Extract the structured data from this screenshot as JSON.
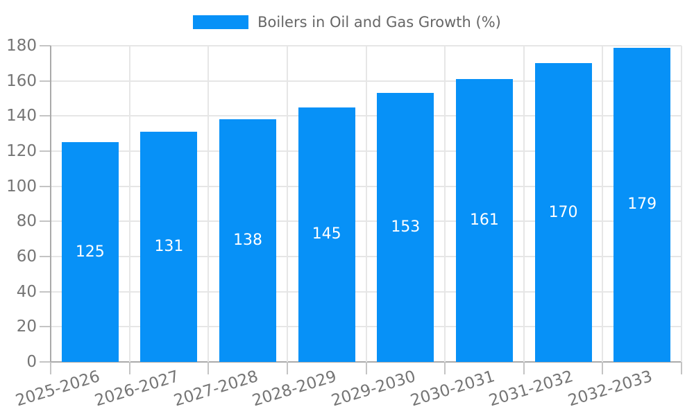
{
  "legend": {
    "label": "Boilers in Oil and Gas Growth (%)"
  },
  "chart_data": {
    "type": "bar",
    "title": "Boilers in Oil and Gas Growth (%)",
    "categories": [
      "2025-2026",
      "2026-2027",
      "2027-2028",
      "2028-2029",
      "2029-2030",
      "2030-2031",
      "2031-2032",
      "2032-2033"
    ],
    "series": [
      {
        "name": "Boilers in Oil and Gas Growth (%)",
        "values": [
          125,
          131,
          138,
          145,
          153,
          161,
          170,
          179
        ]
      }
    ],
    "value_labels": [
      "125",
      "131",
      "138",
      "145",
      "153",
      "161",
      "170",
      "179"
    ],
    "xlabel": "",
    "ylabel": "",
    "ylim": [
      0,
      180
    ],
    "yticks": [
      0,
      20,
      40,
      60,
      80,
      100,
      120,
      140,
      160,
      180
    ],
    "grid": true,
    "legend_position": "top",
    "colors": {
      "bar": "#0791f7",
      "value_label": "#ffffff",
      "axis_text": "#757575",
      "legend_text": "#666666",
      "gridline": "#e6e6e6",
      "axis_line": "#aaaaaa",
      "tick": "#c4c4c4",
      "background": "#ffffff"
    }
  }
}
